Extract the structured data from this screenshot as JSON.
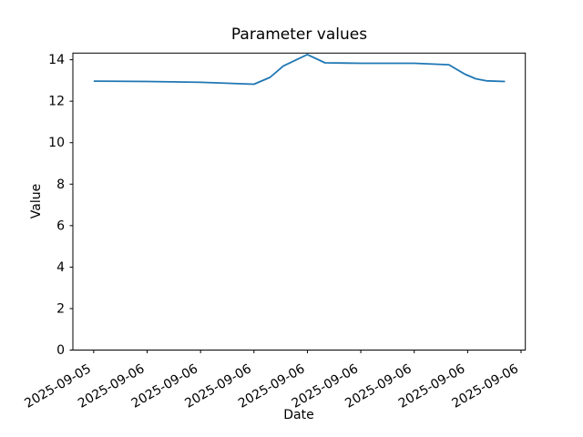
{
  "figure": {
    "background_color": "#ffffff",
    "text_color": "#000000"
  },
  "chart_data": {
    "type": "line",
    "title": "Parameter values",
    "xlabel": "Date",
    "ylabel": "Value",
    "grid": false,
    "axes_color": "#000000",
    "x_unit_note": "x measured in x-axis tick intervals; tick 0 = first tick",
    "x_tick_labels": [
      "2025-09-05",
      "2025-09-06",
      "2025-09-06",
      "2025-09-06",
      "2025-09-06",
      "2025-09-06",
      "2025-09-06",
      "2025-09-06",
      "2025-09-06"
    ],
    "x_tick_rotation_deg": 30,
    "y_tick_values": [
      0,
      2,
      4,
      6,
      8,
      10,
      12,
      14
    ],
    "xlim": [
      -0.39,
      8.08
    ],
    "ylim": [
      0,
      14.32
    ],
    "series": [
      {
        "name": "parameter-values",
        "color": "#1f77b4",
        "x": [
          0,
          1,
          2,
          3,
          3.3,
          3.55,
          4,
          4.33,
          5,
          6,
          6.65,
          6.95,
          7.15,
          7.35,
          7.7
        ],
        "y": [
          12.97,
          12.95,
          12.91,
          12.82,
          13.15,
          13.7,
          14.25,
          13.85,
          13.83,
          13.83,
          13.76,
          13.3,
          13.08,
          12.98,
          12.95
        ]
      }
    ]
  }
}
